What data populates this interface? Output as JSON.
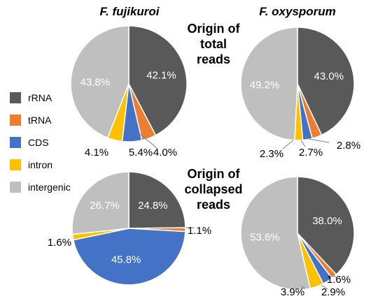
{
  "titles": {
    "col_left": "F. fujikuroi",
    "col_right": "F. oxysporum",
    "row_top": [
      "Origin of",
      "total",
      "reads"
    ],
    "row_bottom": [
      "Origin of",
      "collapsed",
      "reads"
    ]
  },
  "legend": [
    {
      "label": "rRNA",
      "color": "#595959"
    },
    {
      "label": "tRNA",
      "color": "#ed7d31"
    },
    {
      "label": "CDS",
      "color": "#4472c4"
    },
    {
      "label": "intron",
      "color": "#ffc000"
    },
    {
      "label": "intergenic",
      "color": "#bfbfbf"
    }
  ],
  "chart_data": [
    {
      "type": "pie",
      "title": "",
      "group": "F. fujikuroi — Origin of total reads",
      "categories": [
        "rRNA",
        "tRNA",
        "CDS",
        "intron",
        "intergenic"
      ],
      "values": [
        42.1,
        4.0,
        5.4,
        4.1,
        43.8
      ],
      "labels": [
        "42.1%",
        "4.0%",
        "5.4%",
        "4.1%",
        "43.8%"
      ]
    },
    {
      "type": "pie",
      "title": "",
      "group": "F. oxysporum — Origin of total reads",
      "categories": [
        "rRNA",
        "tRNA",
        "CDS",
        "intron",
        "intergenic"
      ],
      "values": [
        43.0,
        2.8,
        2.7,
        2.3,
        49.2
      ],
      "labels": [
        "43.0%",
        "2.8%",
        "2.7%",
        "2.3%",
        "49.2%"
      ]
    },
    {
      "type": "pie",
      "title": "",
      "group": "F. fujikuroi — Origin of collapsed reads",
      "categories": [
        "rRNA",
        "tRNA",
        "CDS",
        "intron",
        "intergenic"
      ],
      "values": [
        24.8,
        1.1,
        45.8,
        1.6,
        26.7
      ],
      "labels": [
        "24.8%",
        "1.1%",
        "45.8%",
        "1.6%",
        "26.7%"
      ]
    },
    {
      "type": "pie",
      "title": "",
      "group": "F. oxysporum — Origin of collapsed reads",
      "categories": [
        "rRNA",
        "tRNA",
        "CDS",
        "intron",
        "intergenic"
      ],
      "values": [
        38.0,
        1.6,
        2.9,
        3.9,
        53.6
      ],
      "labels": [
        "38.0%",
        "1.6%",
        "2.9%",
        "3.9%",
        "53.6%"
      ]
    }
  ]
}
